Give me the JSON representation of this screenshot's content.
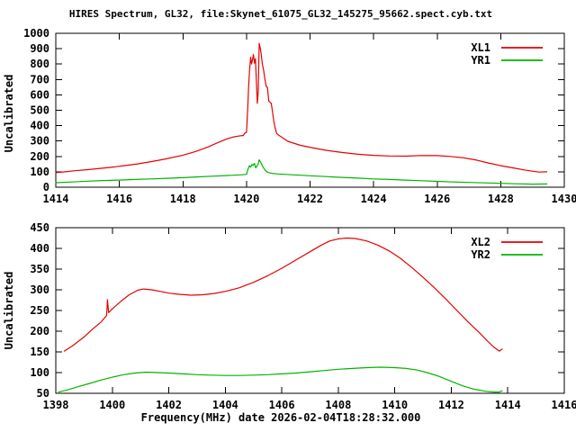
{
  "title": "HIRES Spectrum, GL32, file:Skynet_61075_GL32_145275_95662.spect.cyb.txt",
  "colors": {
    "background": "#ffffff",
    "axis": "#000000",
    "series_red": "#e60000",
    "series_green": "#00b400"
  },
  "chart_data": [
    {
      "type": "line",
      "panel": "top",
      "ylabel": "Uncalibrated",
      "xlim": [
        1414,
        1430
      ],
      "xtick_step": 2,
      "ylim": [
        0,
        1000
      ],
      "ytick_step": 100,
      "grid": false,
      "legend_position": "top-right-inside",
      "series": [
        {
          "name": "XL1",
          "color": "#e60000",
          "points": [
            [
              1414.0,
              95
            ],
            [
              1414.3,
              100
            ],
            [
              1414.6,
              107
            ],
            [
              1415.0,
              114
            ],
            [
              1415.4,
              122
            ],
            [
              1415.8,
              131
            ],
            [
              1416.2,
              141
            ],
            [
              1416.6,
              152
            ],
            [
              1417.0,
              166
            ],
            [
              1417.4,
              181
            ],
            [
              1418.0,
              208
            ],
            [
              1418.4,
              232
            ],
            [
              1418.8,
              262
            ],
            [
              1419.1,
              290
            ],
            [
              1419.4,
              315
            ],
            [
              1419.6,
              327
            ],
            [
              1419.75,
              332
            ],
            [
              1419.9,
              336
            ],
            [
              1419.95,
              352
            ],
            [
              1420.0,
              356
            ],
            [
              1420.04,
              520
            ],
            [
              1420.07,
              660
            ],
            [
              1420.1,
              770
            ],
            [
              1420.13,
              845
            ],
            [
              1420.16,
              800
            ],
            [
              1420.19,
              830
            ],
            [
              1420.22,
              862
            ],
            [
              1420.25,
              805
            ],
            [
              1420.28,
              835
            ],
            [
              1420.31,
              700
            ],
            [
              1420.34,
              545
            ],
            [
              1420.37,
              615
            ],
            [
              1420.4,
              935
            ],
            [
              1420.43,
              905
            ],
            [
              1420.46,
              870
            ],
            [
              1420.5,
              800
            ],
            [
              1420.54,
              760
            ],
            [
              1420.58,
              700
            ],
            [
              1420.62,
              655
            ],
            [
              1420.66,
              648
            ],
            [
              1420.7,
              560
            ],
            [
              1420.74,
              552
            ],
            [
              1420.78,
              545
            ],
            [
              1420.82,
              490
            ],
            [
              1420.86,
              430
            ],
            [
              1420.9,
              385
            ],
            [
              1420.95,
              350
            ],
            [
              1421.0,
              340
            ],
            [
              1421.3,
              298
            ],
            [
              1421.7,
              272
            ],
            [
              1422.1,
              255
            ],
            [
              1422.5,
              240
            ],
            [
              1423.0,
              226
            ],
            [
              1423.5,
              214
            ],
            [
              1424.0,
              207
            ],
            [
              1424.5,
              203
            ],
            [
              1425.0,
              202
            ],
            [
              1425.5,
              206
            ],
            [
              1426.0,
              205
            ],
            [
              1426.4,
              200
            ],
            [
              1426.8,
              192
            ],
            [
              1427.2,
              178
            ],
            [
              1427.6,
              158
            ],
            [
              1428.0,
              140
            ],
            [
              1428.4,
              125
            ],
            [
              1428.8,
              110
            ],
            [
              1429.2,
              98
            ],
            [
              1429.45,
              100
            ]
          ]
        },
        {
          "name": "YR1",
          "color": "#00b400",
          "points": [
            [
              1414.0,
              29
            ],
            [
              1414.5,
              34
            ],
            [
              1415.0,
              39
            ],
            [
              1415.5,
              43
            ],
            [
              1416.0,
              46
            ],
            [
              1416.5,
              50
            ],
            [
              1417.0,
              54
            ],
            [
              1417.5,
              58
            ],
            [
              1418.0,
              62
            ],
            [
              1418.5,
              67
            ],
            [
              1419.0,
              72
            ],
            [
              1419.4,
              76
            ],
            [
              1419.8,
              80
            ],
            [
              1420.0,
              83
            ],
            [
              1420.05,
              118
            ],
            [
              1420.09,
              140
            ],
            [
              1420.13,
              130
            ],
            [
              1420.17,
              148
            ],
            [
              1420.21,
              142
            ],
            [
              1420.25,
              155
            ],
            [
              1420.29,
              126
            ],
            [
              1420.33,
              138
            ],
            [
              1420.37,
              150
            ],
            [
              1420.4,
              178
            ],
            [
              1420.44,
              165
            ],
            [
              1420.48,
              148
            ],
            [
              1420.53,
              128
            ],
            [
              1420.58,
              112
            ],
            [
              1420.64,
              100
            ],
            [
              1420.7,
              95
            ],
            [
              1420.8,
              90
            ],
            [
              1421.0,
              86
            ],
            [
              1421.5,
              80
            ],
            [
              1422.0,
              74
            ],
            [
              1422.5,
              69
            ],
            [
              1423.0,
              64
            ],
            [
              1423.5,
              59
            ],
            [
              1424.0,
              54
            ],
            [
              1424.5,
              50
            ],
            [
              1425.0,
              46
            ],
            [
              1425.5,
              42
            ],
            [
              1426.0,
              38
            ],
            [
              1426.5,
              34
            ],
            [
              1427.0,
              31
            ],
            [
              1427.5,
              28
            ],
            [
              1428.0,
              25
            ],
            [
              1428.5,
              22
            ],
            [
              1429.0,
              20
            ],
            [
              1429.45,
              21
            ]
          ]
        }
      ]
    },
    {
      "type": "line",
      "panel": "bottom",
      "ylabel": "Uncalibrated",
      "xlabel": "Frequency(MHz) date 2026-02-04T18:28:32.000",
      "xlim": [
        1398,
        1416
      ],
      "xtick_step": 2,
      "ylim": [
        50,
        450
      ],
      "ytick_step": 50,
      "grid": false,
      "legend_position": "top-right-inside",
      "series": [
        {
          "name": "XL2",
          "color": "#e60000",
          "points": [
            [
              1398.3,
              152
            ],
            [
              1398.6,
              165
            ],
            [
              1399.0,
              186
            ],
            [
              1399.3,
              205
            ],
            [
              1399.6,
              222
            ],
            [
              1399.8,
              238
            ],
            [
              1399.83,
              276
            ],
            [
              1399.87,
              245
            ],
            [
              1400.0,
              254
            ],
            [
              1400.3,
              272
            ],
            [
              1400.6,
              288
            ],
            [
              1400.9,
              299
            ],
            [
              1401.1,
              302
            ],
            [
              1401.4,
              300
            ],
            [
              1401.7,
              296
            ],
            [
              1402.0,
              292
            ],
            [
              1402.4,
              289
            ],
            [
              1402.8,
              287
            ],
            [
              1403.2,
              288
            ],
            [
              1403.6,
              291
            ],
            [
              1404.0,
              296
            ],
            [
              1404.5,
              305
            ],
            [
              1405.0,
              318
            ],
            [
              1405.5,
              334
            ],
            [
              1406.0,
              352
            ],
            [
              1406.5,
              372
            ],
            [
              1407.0,
              392
            ],
            [
              1407.4,
              408
            ],
            [
              1407.7,
              418
            ],
            [
              1408.0,
              423
            ],
            [
              1408.3,
              425
            ],
            [
              1408.6,
              424
            ],
            [
              1409.0,
              418
            ],
            [
              1409.4,
              408
            ],
            [
              1409.8,
              394
            ],
            [
              1410.2,
              376
            ],
            [
              1410.6,
              354
            ],
            [
              1411.0,
              330
            ],
            [
              1411.4,
              305
            ],
            [
              1411.8,
              278
            ],
            [
              1412.2,
              250
            ],
            [
              1412.6,
              222
            ],
            [
              1413.0,
              196
            ],
            [
              1413.3,
              175
            ],
            [
              1413.5,
              162
            ],
            [
              1413.7,
              152
            ],
            [
              1413.8,
              157
            ]
          ]
        },
        {
          "name": "YR2",
          "color": "#00b400",
          "points": [
            [
              1398.1,
              53
            ],
            [
              1398.4,
              58
            ],
            [
              1398.8,
              66
            ],
            [
              1399.2,
              74
            ],
            [
              1399.6,
              82
            ],
            [
              1400.0,
              89
            ],
            [
              1400.4,
              95
            ],
            [
              1400.8,
              99
            ],
            [
              1401.2,
              101
            ],
            [
              1401.6,
              100
            ],
            [
              1402.0,
              99
            ],
            [
              1402.5,
              97
            ],
            [
              1403.0,
              95
            ],
            [
              1403.5,
              94
            ],
            [
              1404.0,
              93
            ],
            [
              1404.5,
              93
            ],
            [
              1405.0,
              94
            ],
            [
              1405.5,
              95
            ],
            [
              1406.0,
              97
            ],
            [
              1406.5,
              99
            ],
            [
              1407.0,
              102
            ],
            [
              1407.5,
              105
            ],
            [
              1408.0,
              108
            ],
            [
              1408.5,
              110
            ],
            [
              1409.0,
              112
            ],
            [
              1409.5,
              113
            ],
            [
              1410.0,
              112
            ],
            [
              1410.4,
              110
            ],
            [
              1410.8,
              106
            ],
            [
              1411.2,
              99
            ],
            [
              1411.6,
              90
            ],
            [
              1412.0,
              79
            ],
            [
              1412.4,
              68
            ],
            [
              1412.8,
              60
            ],
            [
              1413.2,
              55
            ],
            [
              1413.5,
              53
            ],
            [
              1413.7,
              53
            ],
            [
              1413.8,
              56
            ]
          ]
        }
      ]
    }
  ]
}
